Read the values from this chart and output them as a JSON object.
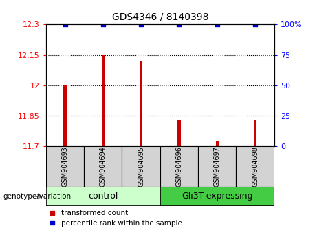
{
  "title": "GDS4346 / 8140398",
  "categories": [
    "GSM904693",
    "GSM904694",
    "GSM904695",
    "GSM904696",
    "GSM904697",
    "GSM904698"
  ],
  "bar_values": [
    12.0,
    12.15,
    12.12,
    11.83,
    11.73,
    11.83
  ],
  "percentile_values": [
    100,
    100,
    100,
    100,
    100,
    100
  ],
  "ylim_left": [
    11.7,
    12.3
  ],
  "ylim_right": [
    0,
    100
  ],
  "yticks_left": [
    11.7,
    11.85,
    12.0,
    12.15,
    12.3
  ],
  "ytick_labels_left": [
    "11.7",
    "11.85",
    "12",
    "12.15",
    "12.3"
  ],
  "yticks_right": [
    0,
    25,
    50,
    75,
    100
  ],
  "ytick_labels_right": [
    "0",
    "25",
    "50",
    "75",
    "100%"
  ],
  "bar_color": "#cc0000",
  "dot_color": "#0000cc",
  "bar_bottom": 11.7,
  "bar_width": 0.08,
  "control_label": "control",
  "gli3t_label": "Gli3T-expressing",
  "control_color": "#ccffcc",
  "gli3t_color": "#44cc44",
  "legend_bar_label": "transformed count",
  "legend_dot_label": "percentile rank within the sample",
  "genotype_label": "genotype/variation",
  "gridline_ticks": [
    11.85,
    12.0,
    12.15
  ],
  "dot_size": 16,
  "label_box_color": "#d3d3d3"
}
